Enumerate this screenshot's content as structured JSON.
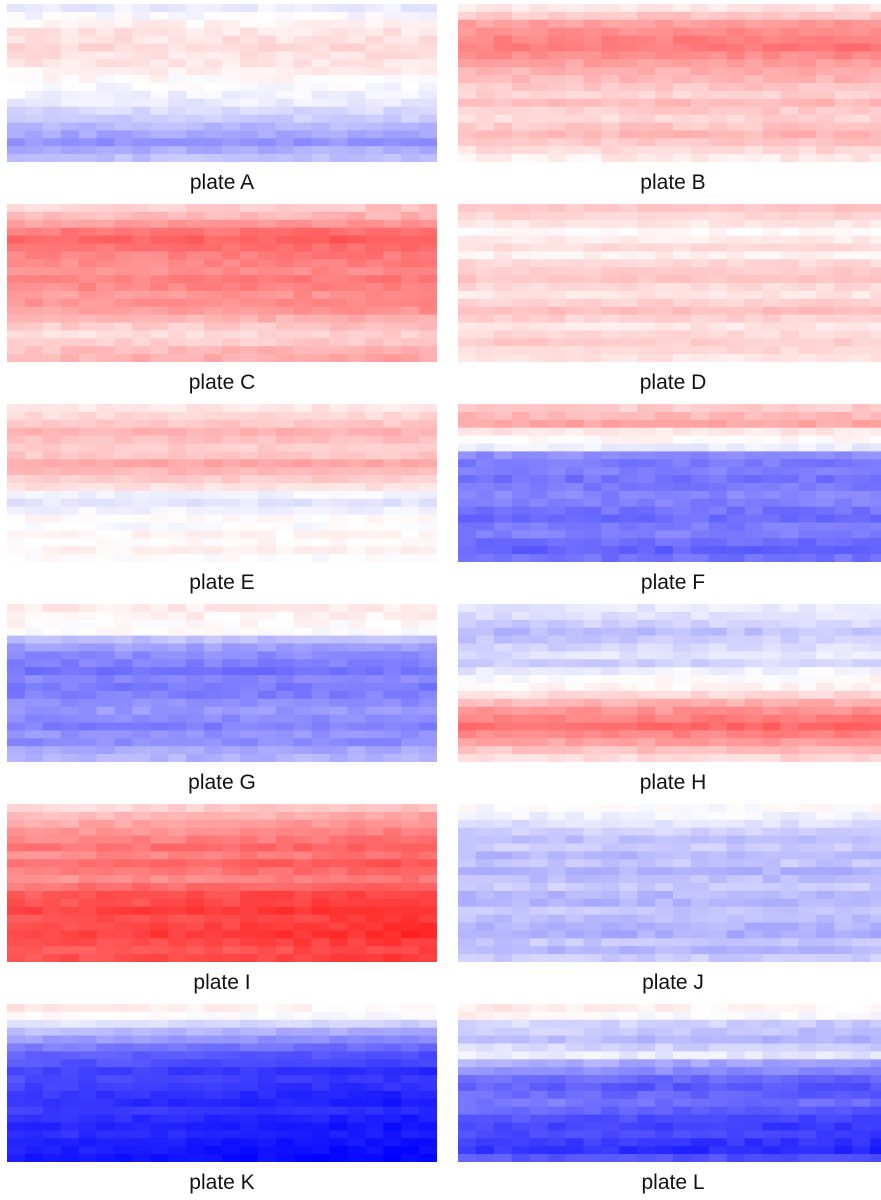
{
  "chart_data": [
    {
      "type": "heatmap",
      "caption": "plate A",
      "rows": 20,
      "cols": 24,
      "profile": [
        -0.08,
        -0.02,
        0.05,
        0.1,
        0.12,
        0.15,
        0.12,
        0.1,
        0.06,
        0.02,
        -0.02,
        -0.05,
        -0.08,
        -0.15,
        -0.2,
        -0.28,
        -0.35,
        -0.42,
        -0.32,
        -0.24
      ],
      "drift": 0.0,
      "noise": 0.05
    },
    {
      "type": "heatmap",
      "caption": "plate B",
      "rows": 20,
      "cols": 24,
      "profile": [
        0.1,
        0.22,
        0.38,
        0.45,
        0.5,
        0.52,
        0.45,
        0.38,
        0.32,
        0.28,
        0.22,
        0.18,
        0.26,
        0.2,
        0.16,
        0.22,
        0.28,
        0.22,
        0.15,
        0.08
      ],
      "drift": 0.02,
      "noise": 0.05
    },
    {
      "type": "heatmap",
      "caption": "plate C",
      "rows": 20,
      "cols": 24,
      "profile": [
        0.2,
        0.28,
        0.4,
        0.55,
        0.62,
        0.55,
        0.5,
        0.48,
        0.45,
        0.5,
        0.48,
        0.42,
        0.45,
        0.4,
        0.3,
        0.22,
        0.15,
        0.2,
        0.28,
        0.32
      ],
      "drift": 0.04,
      "noise": 0.05
    },
    {
      "type": "heatmap",
      "caption": "plate D",
      "rows": 20,
      "cols": 24,
      "profile": [
        0.22,
        0.16,
        0.1,
        0.02,
        0.08,
        0.14,
        0.06,
        0.16,
        0.2,
        0.22,
        0.15,
        0.1,
        0.18,
        0.25,
        0.18,
        0.1,
        0.15,
        0.2,
        0.15,
        0.1
      ],
      "drift": 0.0,
      "noise": 0.04
    },
    {
      "type": "heatmap",
      "caption": "plate E",
      "rows": 20,
      "cols": 24,
      "profile": [
        0.1,
        0.15,
        0.22,
        0.3,
        0.25,
        0.2,
        0.22,
        0.35,
        0.28,
        0.2,
        0.12,
        -0.05,
        -0.1,
        -0.05,
        0.02,
        -0.02,
        0.04,
        0.02,
        0.06,
        0.0
      ],
      "drift": 0.0,
      "noise": 0.04
    },
    {
      "type": "heatmap",
      "caption": "plate F",
      "rows": 20,
      "cols": 24,
      "profile": [
        0.2,
        0.28,
        0.35,
        0.1,
        0.02,
        -0.08,
        -0.45,
        -0.52,
        -0.5,
        -0.55,
        -0.52,
        -0.48,
        -0.5,
        -0.55,
        -0.58,
        -0.52,
        -0.5,
        -0.58,
        -0.62,
        -0.55
      ],
      "drift": 0.0,
      "noise": 0.05
    },
    {
      "type": "heatmap",
      "caption": "plate G",
      "rows": 20,
      "cols": 24,
      "profile": [
        0.08,
        0.05,
        0.02,
        0.0,
        -0.25,
        -0.38,
        -0.45,
        -0.5,
        -0.55,
        -0.48,
        -0.52,
        -0.5,
        -0.45,
        -0.4,
        -0.45,
        -0.5,
        -0.42,
        -0.45,
        -0.35,
        -0.3
      ],
      "drift": 0.0,
      "noise": 0.05
    },
    {
      "type": "heatmap",
      "caption": "plate H",
      "rows": 20,
      "cols": 24,
      "profile": [
        -0.08,
        -0.12,
        -0.18,
        -0.25,
        -0.2,
        -0.15,
        -0.1,
        -0.18,
        -0.06,
        0.0,
        0.05,
        0.15,
        0.3,
        0.42,
        0.5,
        0.58,
        0.48,
        0.38,
        0.25,
        0.15
      ],
      "drift": 0.03,
      "noise": 0.05
    },
    {
      "type": "heatmap",
      "caption": "plate I",
      "rows": 20,
      "cols": 24,
      "profile": [
        0.2,
        0.3,
        0.38,
        0.45,
        0.5,
        0.58,
        0.5,
        0.62,
        0.55,
        0.48,
        0.6,
        0.7,
        0.72,
        0.78,
        0.72,
        0.75,
        0.78,
        0.72,
        0.68,
        0.72
      ],
      "drift": 0.06,
      "noise": 0.05
    },
    {
      "type": "heatmap",
      "caption": "plate J",
      "rows": 20,
      "cols": 24,
      "profile": [
        0.0,
        -0.05,
        -0.12,
        -0.18,
        -0.25,
        -0.2,
        -0.28,
        -0.22,
        -0.3,
        -0.25,
        -0.2,
        -0.28,
        -0.3,
        -0.22,
        -0.25,
        -0.3,
        -0.32,
        -0.22,
        -0.28,
        -0.2
      ],
      "drift": 0.0,
      "noise": 0.05
    },
    {
      "type": "heatmap",
      "caption": "plate K",
      "rows": 20,
      "cols": 24,
      "profile": [
        0.05,
        0.0,
        -0.15,
        -0.3,
        -0.42,
        -0.55,
        -0.65,
        -0.7,
        -0.78,
        -0.75,
        -0.78,
        -0.82,
        -0.85,
        -0.8,
        -0.85,
        -0.88,
        -0.85,
        -0.9,
        -0.92,
        -0.95
      ],
      "drift": -0.05,
      "noise": 0.04
    },
    {
      "type": "heatmap",
      "caption": "plate L",
      "rows": 20,
      "cols": 24,
      "profile": [
        0.05,
        0.0,
        -0.18,
        -0.22,
        -0.28,
        -0.18,
        -0.08,
        -0.35,
        -0.45,
        -0.58,
        -0.65,
        -0.6,
        -0.55,
        -0.62,
        -0.7,
        -0.75,
        -0.72,
        -0.78,
        -0.82,
        -0.68
      ],
      "drift": -0.04,
      "noise": 0.05
    }
  ]
}
